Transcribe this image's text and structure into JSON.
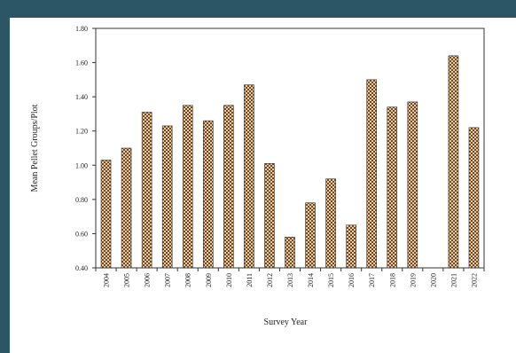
{
  "chart_data": {
    "type": "bar",
    "categories": [
      "2004",
      "2005",
      "2006",
      "2007",
      "2008",
      "2009",
      "2010",
      "2011",
      "2012",
      "2013",
      "2014",
      "2015",
      "2016",
      "2017",
      "2018",
      "2019",
      "2020",
      "2021",
      "2022"
    ],
    "values": [
      1.03,
      1.1,
      1.31,
      1.23,
      1.35,
      1.26,
      1.35,
      1.47,
      1.01,
      0.58,
      0.78,
      0.92,
      0.65,
      1.5,
      1.34,
      1.37,
      null,
      1.64,
      1.22
    ],
    "yticks": [
      "0.40",
      "0.60",
      "0.80",
      "1.00",
      "1.20",
      "1.40",
      "1.60",
      "1.80"
    ],
    "ylim": [
      0.4,
      1.8
    ],
    "xlabel": "Survey Year",
    "ylabel": "Mean Pellet Groups/Plot",
    "title": "",
    "grid": false,
    "bar_fill": "checkered tan/brown",
    "colors": {
      "bar_light": "#e8c9a0",
      "bar_dark": "#6b4a2c",
      "axis": "#333333"
    }
  }
}
